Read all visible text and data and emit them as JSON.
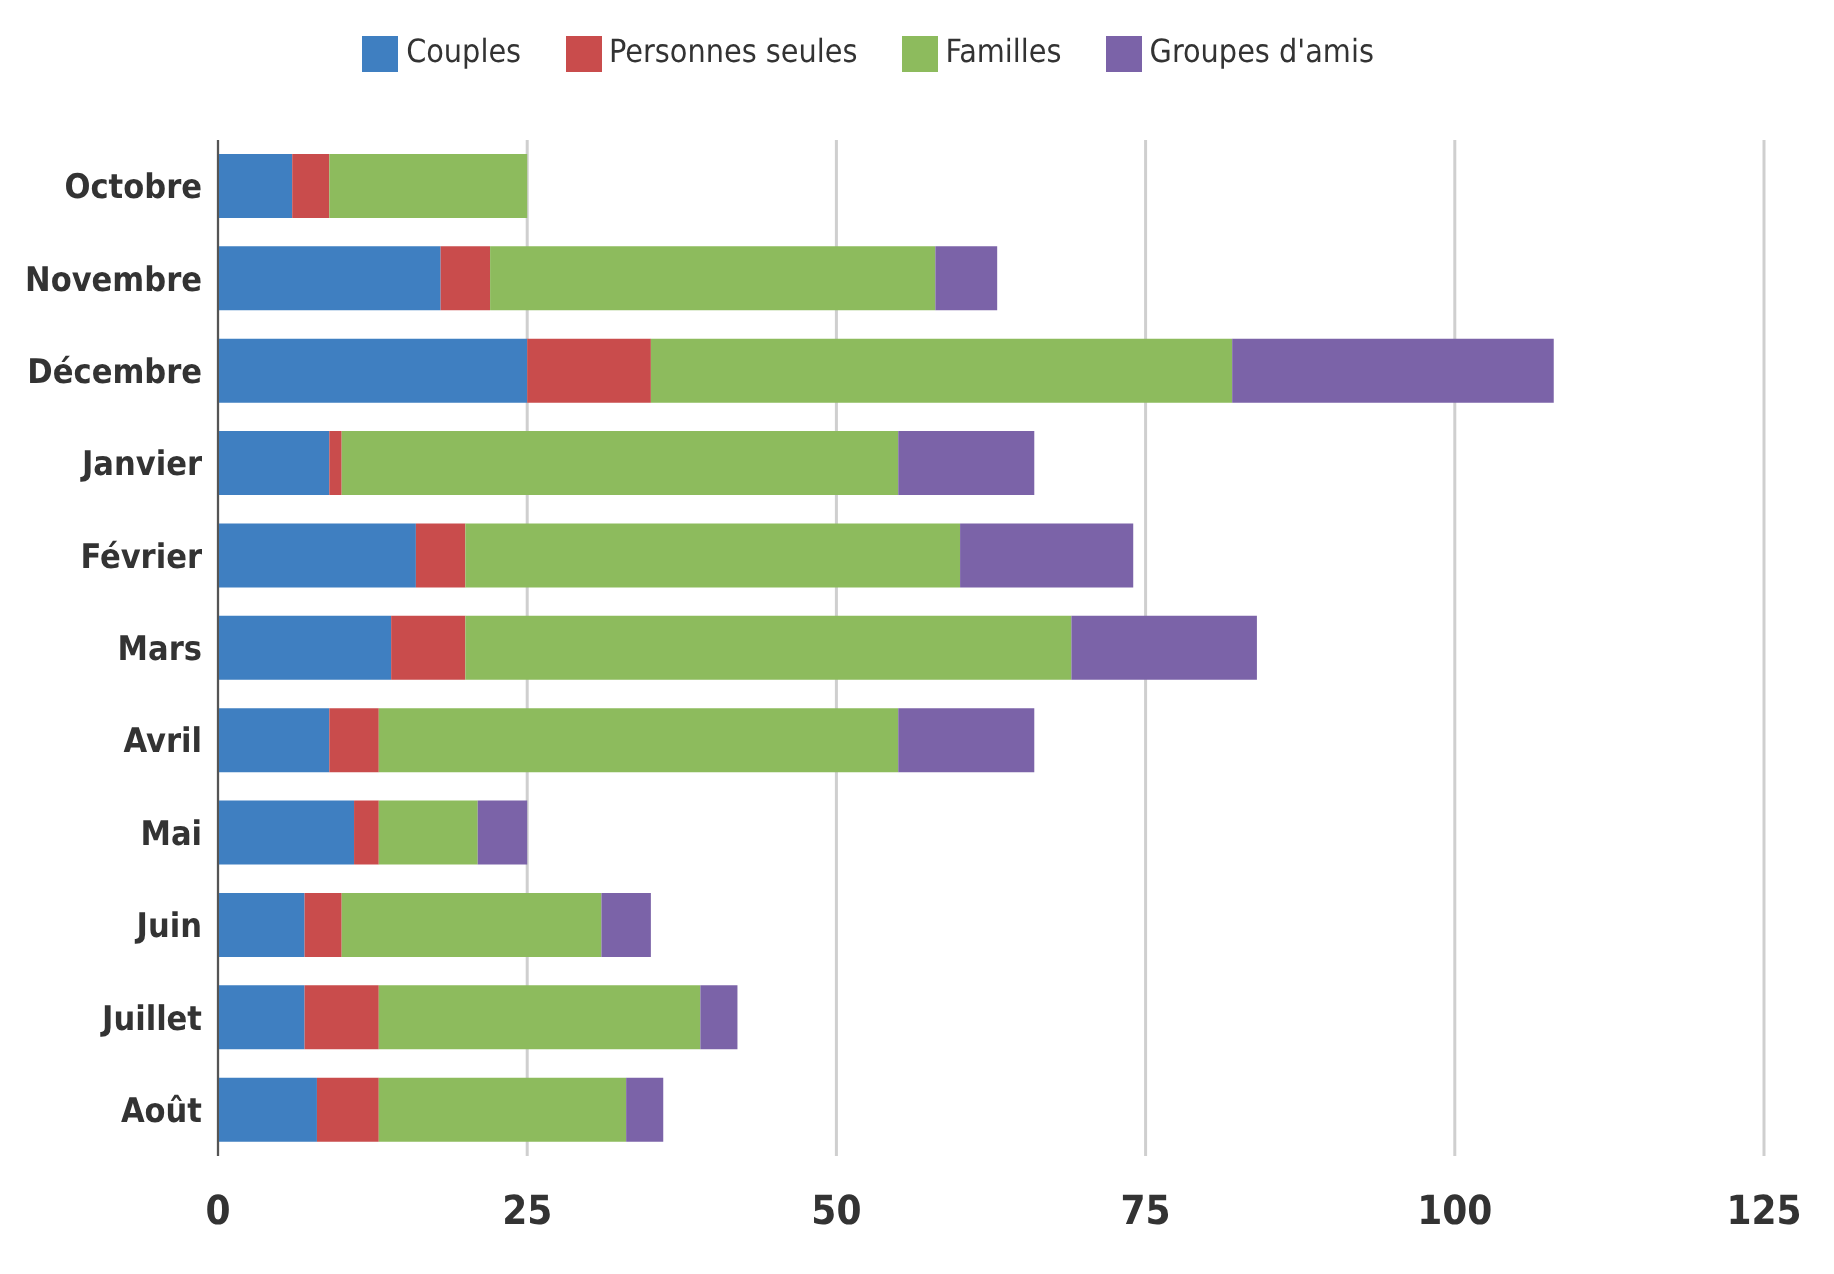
{
  "chart_data": {
    "type": "bar",
    "orientation": "horizontal",
    "stacked": true,
    "categories": [
      "Octobre",
      "Novembre",
      "Décembre",
      "Janvier",
      "Février",
      "Mars",
      "Avril",
      "Mai",
      "Juin",
      "Juillet",
      "Août"
    ],
    "series": [
      {
        "name": "Couples",
        "color": "#3f7fc1",
        "values": [
          6,
          18,
          25,
          9,
          16,
          14,
          9,
          11,
          7,
          7,
          8
        ]
      },
      {
        "name": "Personnes seules",
        "color": "#c94c4c",
        "values": [
          3,
          4,
          10,
          1,
          4,
          6,
          4,
          2,
          3,
          6,
          5
        ]
      },
      {
        "name": "Familles",
        "color": "#8dbb5d",
        "values": [
          16,
          36,
          47,
          45,
          40,
          49,
          42,
          8,
          21,
          26,
          20
        ]
      },
      {
        "name": "Groupes d'amis",
        "color": "#7b63a8",
        "values": [
          0,
          5,
          26,
          11,
          14,
          15,
          11,
          4,
          4,
          3,
          3
        ]
      }
    ],
    "xlim": [
      0,
      125
    ],
    "xticks": [
      0,
      25,
      50,
      75,
      100,
      125
    ],
    "grid": "x",
    "legend": "top"
  }
}
